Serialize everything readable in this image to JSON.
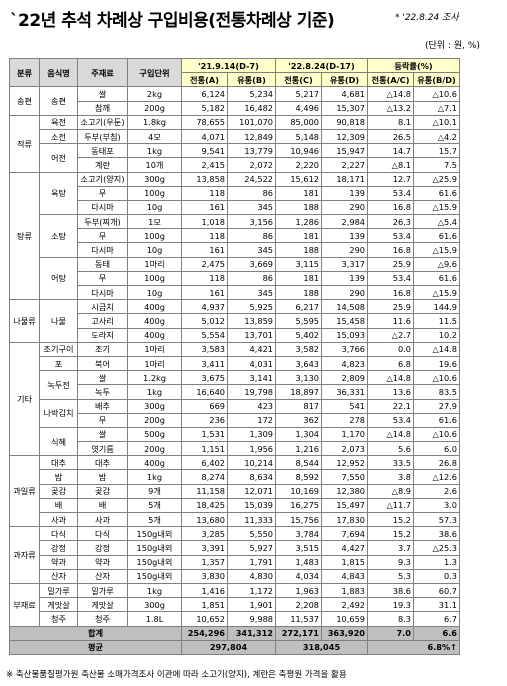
{
  "title": "`22년 추석 차례상 구입비용(전통차례상 기준)",
  "note": "* '22.8.24 조사",
  "unit": "(단위 : 원, %)",
  "headers": {
    "category": "분류",
    "food": "음식명",
    "ingredient": "주재료",
    "unit": "구입단위",
    "date1": "'21.9.14(D-7)",
    "date2": "'22.8.24(D-17)",
    "rate": "등락률(%)",
    "trad": "전통(A)",
    "dist": "유통(B)",
    "trad2": "전통(C)",
    "dist2": "유통(D)",
    "rate_trad": "전통(A/C)",
    "rate_dist": "유통(B/D)"
  },
  "rows": [
    [
      "송편",
      "송편",
      "쌀",
      "2kg",
      "6,124",
      "5,234",
      "5,217",
      "4,681",
      "△14.8",
      "△10.6"
    ],
    [
      "",
      "",
      "참깨",
      "200g",
      "5,182",
      "16,482",
      "4,496",
      "15,307",
      "△13.2",
      "△7.1"
    ],
    [
      "적류",
      "",
      "육전",
      "소고기(우둔)",
      "1.8kg",
      "78,655",
      "101,070",
      "85,000",
      "90,818",
      "8.1",
      "△10.1"
    ],
    [
      "",
      "",
      "소전",
      "두부(부침)",
      "4모",
      "4,071",
      "12,849",
      "5,148",
      "12,309",
      "26.5",
      "△4.2"
    ],
    [
      "",
      "",
      "어전",
      "동태포",
      "1kg",
      "9,541",
      "13,779",
      "10,946",
      "15,947",
      "14.7",
      "15.7"
    ],
    [
      "",
      "",
      "",
      "계란",
      "10개",
      "2,415",
      "2,072",
      "2,220",
      "2,227",
      "△8.1",
      "7.5"
    ],
    [
      "탕류",
      "육탕",
      "소고기(양지)",
      "300g",
      "13,858",
      "24,522",
      "15,612",
      "18,171",
      "12.7",
      "△25.9"
    ],
    [
      "",
      "",
      "무",
      "100g",
      "118",
      "86",
      "181",
      "139",
      "53.4",
      "61.6"
    ],
    [
      "",
      "",
      "다시마",
      "10g",
      "161",
      "345",
      "188",
      "290",
      "16.8",
      "△15.9"
    ],
    [
      "",
      "소탕",
      "두부(찌개)",
      "1모",
      "1,018",
      "3,156",
      "1,286",
      "2,984",
      "26.3",
      "△5.4"
    ],
    [
      "",
      "",
      "무",
      "100g",
      "118",
      "86",
      "181",
      "139",
      "53.4",
      "61.6"
    ],
    [
      "",
      "",
      "다시마",
      "10g",
      "161",
      "345",
      "188",
      "290",
      "16.8",
      "△15.9"
    ],
    [
      "",
      "어탕",
      "동태",
      "1마리",
      "2,475",
      "3,669",
      "3,115",
      "3,317",
      "25.9",
      "△9.6"
    ],
    [
      "",
      "",
      "무",
      "100g",
      "118",
      "86",
      "181",
      "139",
      "53.4",
      "61.6"
    ],
    [
      "",
      "",
      "다시마",
      "10g",
      "161",
      "345",
      "188",
      "290",
      "16.8",
      "△15.9"
    ],
    [
      "나물류",
      "나물",
      "시금치",
      "400g",
      "4,937",
      "5,925",
      "6,217",
      "14,508",
      "25.9",
      "144.9"
    ],
    [
      "",
      "",
      "고사리",
      "400g",
      "5,012",
      "13,859",
      "5,595",
      "15,458",
      "11.6",
      "11.5"
    ],
    [
      "",
      "",
      "도라지",
      "400g",
      "5,554",
      "13,701",
      "5,402",
      "15,093",
      "△2.7",
      "10.2"
    ],
    [
      "기타",
      "조기구이",
      "조기",
      "1마리",
      "3,583",
      "4,421",
      "3,582",
      "3,766",
      "0.0",
      "△14.8"
    ],
    [
      "",
      "포",
      "북어",
      "1마리",
      "3,411",
      "4,031",
      "3,643",
      "4,823",
      "6.8",
      "19.6"
    ],
    [
      "",
      "녹두전",
      "쌀",
      "1.2kg",
      "3,675",
      "3,141",
      "3,130",
      "2,809",
      "△14.8",
      "△10.6"
    ],
    [
      "",
      "",
      "녹두",
      "1kg",
      "16,640",
      "19,798",
      "18,897",
      "36,331",
      "13.6",
      "83.5"
    ],
    [
      "",
      "나박김치",
      "배추",
      "300g",
      "669",
      "423",
      "817",
      "541",
      "22.1",
      "27.9"
    ],
    [
      "",
      "",
      "무",
      "200g",
      "236",
      "172",
      "362",
      "278",
      "53.4",
      "61.6"
    ],
    [
      "",
      "식혜",
      "쌀",
      "500g",
      "1,531",
      "1,309",
      "1,304",
      "1,170",
      "△14.8",
      "△10.6"
    ],
    [
      "",
      "",
      "엿기름",
      "200g",
      "1,151",
      "1,956",
      "1,216",
      "2,073",
      "5.6",
      "6.0"
    ],
    [
      "과일류",
      "대추",
      "대추",
      "400g",
      "6,402",
      "10,214",
      "8,544",
      "12,952",
      "33.5",
      "26.8"
    ],
    [
      "",
      "밤",
      "밤",
      "1kg",
      "8,274",
      "8,634",
      "8,592",
      "7,550",
      "3.8",
      "△12.6"
    ],
    [
      "",
      "곶감",
      "곶감",
      "9개",
      "11,158",
      "12,071",
      "10,169",
      "12,380",
      "△8.9",
      "2.6"
    ],
    [
      "",
      "배",
      "배",
      "5개",
      "18,425",
      "15,039",
      "16,275",
      "15,497",
      "△11.7",
      "3.0"
    ],
    [
      "",
      "사과",
      "사과",
      "5개",
      "13,680",
      "11,333",
      "15,756",
      "17,830",
      "15.2",
      "57.3"
    ],
    [
      "과자류",
      "다식",
      "다식",
      "150g내외",
      "3,285",
      "5,550",
      "3,784",
      "7,694",
      "15.2",
      "38.6"
    ],
    [
      "",
      "강정",
      "강정",
      "150g내외",
      "3,391",
      "5,927",
      "3,515",
      "4,427",
      "3.7",
      "△25.3"
    ],
    [
      "",
      "약과",
      "약과",
      "150g내외",
      "1,357",
      "1,791",
      "1,483",
      "1,815",
      "9.3",
      "1.3"
    ],
    [
      "",
      "산자",
      "산자",
      "150g내외",
      "3,830",
      "4,830",
      "4,034",
      "4,843",
      "5.3",
      "0.3"
    ],
    [
      "부재료",
      "밀가루",
      "밀가루",
      "1kg",
      "1,416",
      "1,172",
      "1,963",
      "1,883",
      "38.6",
      "60.7"
    ],
    [
      "",
      "게맛살",
      "게맛살",
      "300g",
      "1,851",
      "1,901",
      "2,208",
      "2,492",
      "19.3",
      "31.1"
    ],
    [
      "",
      "청주",
      "청주",
      "1.8L",
      "10,652",
      "9,988",
      "11,537",
      "10,659",
      "8.3",
      "6.7"
    ]
  ],
  "total": {
    "label": "합계",
    "a": "254,296",
    "b": "341,312",
    "c": "272,171",
    "d": "363,920",
    "r1": "7.0",
    "r2": "6.6"
  },
  "avg": {
    "label": "평균",
    "ab": "297,804",
    "cd": "318,045",
    "r": "6.8%↑"
  },
  "footnote": "※ 축산물품질평가원 축산물 소매가격조사 이관에 따라 소고기(양지), 계란은 축평원 가격을 활용"
}
